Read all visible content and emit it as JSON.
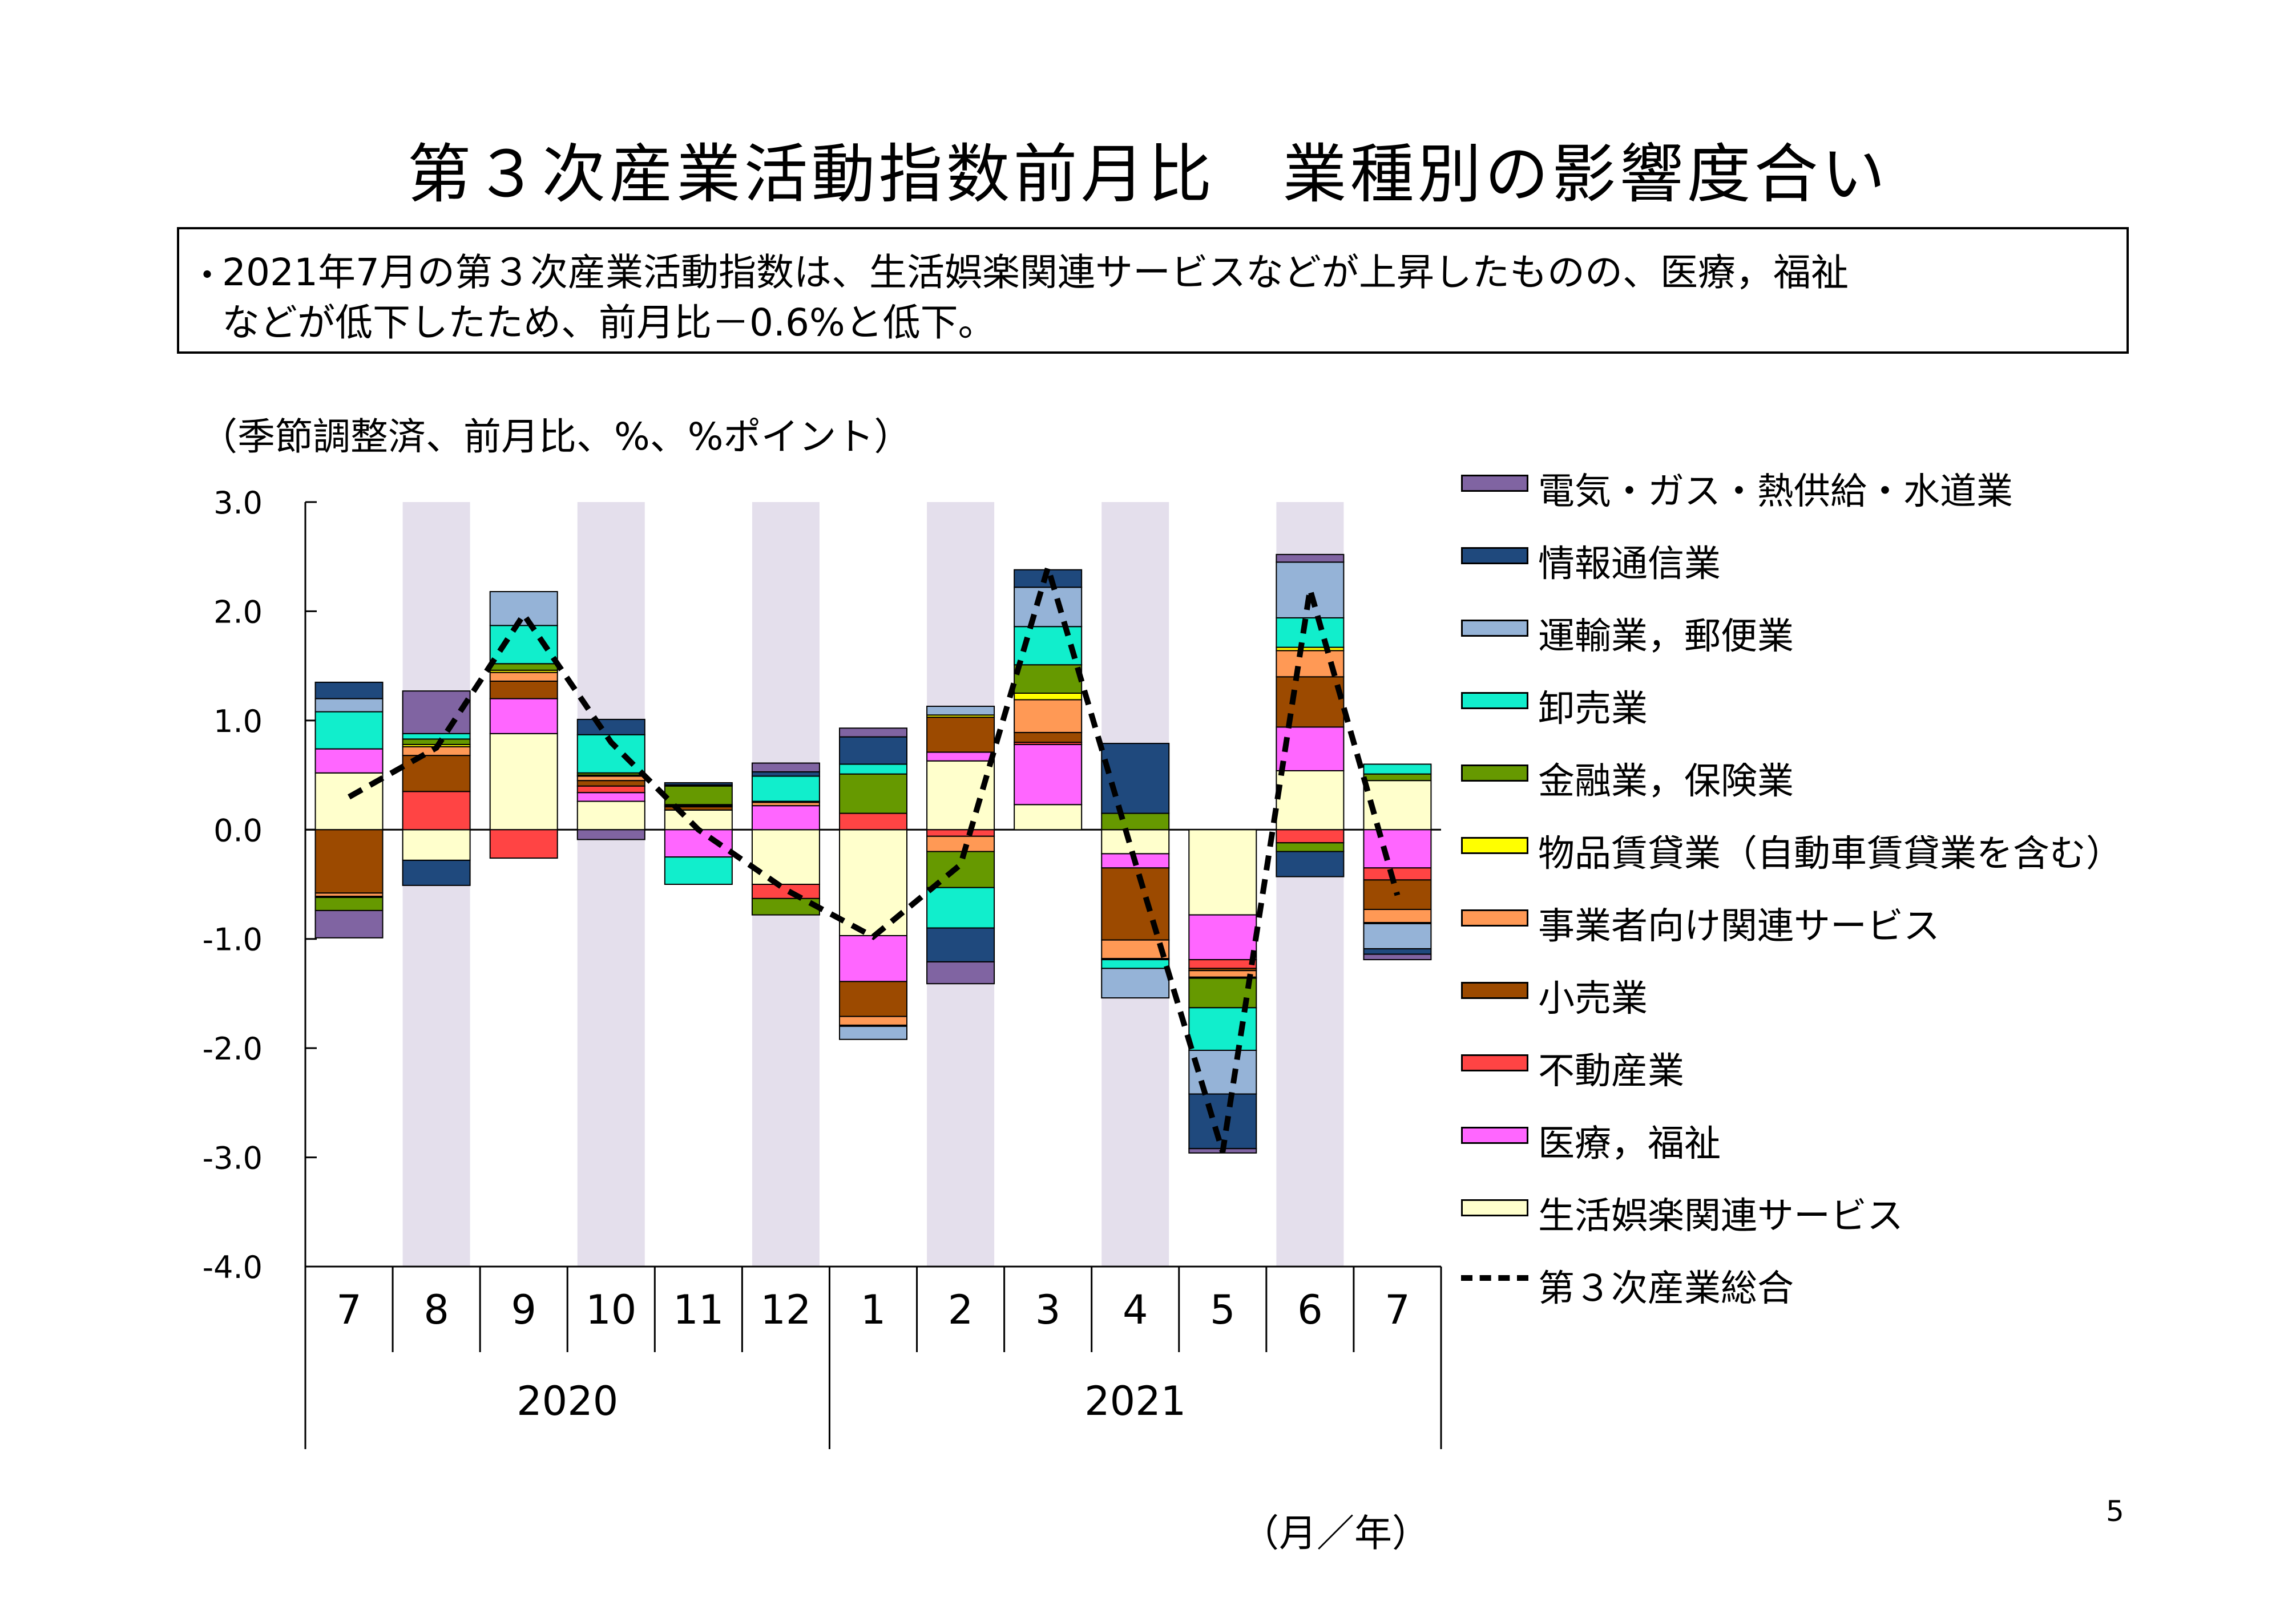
{
  "title": "第３次産業活動指数前月比　業種別の影響度合い",
  "summary": {
    "bullet": "・",
    "line1": "2021年7月の第３次産業活動指数は、生活娯楽関連サービスなどが上昇したものの、医療，福祉",
    "line2": "などが低下したため、前月比－0.6%と低下。"
  },
  "units_note": "（季節調整済、前月比、%、%ポイント）",
  "page_number": "5",
  "chart_data": {
    "type": "bar",
    "stacked": true,
    "categories": [
      "7",
      "8",
      "9",
      "10",
      "11",
      "12",
      "1",
      "2",
      "3",
      "4",
      "5",
      "6",
      "7"
    ],
    "year_groups": [
      {
        "label": "2020",
        "start": 0,
        "end": 5
      },
      {
        "label": "2021",
        "start": 6,
        "end": 12
      }
    ],
    "x_unit_label": "（月／年）",
    "ylim": [
      -4.0,
      3.0
    ],
    "yticks": [
      3.0,
      2.0,
      1.0,
      0.0,
      -1.0,
      -2.0,
      -3.0,
      -4.0
    ],
    "ytick_labels": [
      "3.0",
      "2.0",
      "1.0",
      "0.0",
      "-1.0",
      "-2.0",
      "-3.0",
      "-4.0"
    ],
    "shaded_columns": [
      1,
      3,
      5,
      7,
      9,
      11
    ],
    "shade_color": "#e4dfec",
    "series": [
      {
        "name": "生活娯楽関連サービス",
        "color": "#ffffcc",
        "values": [
          0.52,
          -0.28,
          0.88,
          0.26,
          0.18,
          -0.5,
          -0.97,
          0.63,
          0.23,
          -0.22,
          -0.78,
          0.54,
          0.45
        ]
      },
      {
        "name": "医療，福祉",
        "color": "#ff66ff",
        "values": [
          0.22,
          0.0,
          0.32,
          0.08,
          -0.25,
          0.22,
          -0.42,
          0.08,
          0.55,
          -0.13,
          -0.41,
          0.4,
          -0.35
        ]
      },
      {
        "name": "不動産業",
        "color": "#ff4444",
        "values": [
          0.0,
          0.35,
          -0.26,
          0.06,
          0.0,
          -0.13,
          0.15,
          -0.06,
          0.02,
          0.0,
          -0.08,
          -0.12,
          -0.11
        ]
      },
      {
        "name": "小売業",
        "color": "#9c4a00",
        "values": [
          -0.58,
          0.33,
          0.16,
          0.05,
          0.03,
          0.0,
          -0.32,
          0.32,
          0.09,
          -0.66,
          -0.02,
          0.46,
          -0.27
        ]
      },
      {
        "name": "事業者向け関連サービス",
        "color": "#ff9955",
        "values": [
          -0.03,
          0.08,
          0.08,
          0.04,
          0.01,
          0.03,
          -0.08,
          -0.14,
          0.3,
          -0.17,
          -0.06,
          0.24,
          -0.12
        ]
      },
      {
        "name": "物品賃貸業（自動車賃貸業を含む）",
        "color": "#ffff00",
        "values": [
          -0.01,
          0.02,
          0.02,
          0.01,
          0.01,
          0.01,
          -0.01,
          0.02,
          0.06,
          -0.01,
          -0.01,
          0.03,
          -0.01
        ]
      },
      {
        "name": "金融業，保険業",
        "color": "#669900",
        "values": [
          -0.12,
          0.05,
          0.06,
          0.02,
          0.17,
          -0.15,
          0.36,
          -0.33,
          0.26,
          0.15,
          -0.27,
          -0.08,
          0.06
        ]
      },
      {
        "name": "卸売業",
        "color": "#11eecc",
        "values": [
          0.34,
          0.05,
          0.35,
          0.35,
          -0.25,
          0.23,
          0.09,
          -0.37,
          0.35,
          -0.08,
          -0.39,
          0.27,
          0.09
        ]
      },
      {
        "name": "運輸業，郵便業",
        "color": "#95b3d7",
        "values": [
          0.12,
          0.0,
          0.31,
          0.0,
          0.01,
          0.0,
          -0.12,
          0.08,
          0.36,
          -0.27,
          -0.4,
          0.51,
          -0.23
        ]
      },
      {
        "name": "情報通信業",
        "color": "#1f497d",
        "values": [
          0.15,
          -0.23,
          0.0,
          0.14,
          0.02,
          0.04,
          0.25,
          -0.31,
          0.16,
          0.64,
          -0.5,
          -0.23,
          -0.05
        ]
      },
      {
        "name": "電気・ガス・熱供給・水道業",
        "color": "#8064a2",
        "values": [
          -0.25,
          0.39,
          0.0,
          -0.09,
          0.0,
          0.08,
          0.08,
          -0.2,
          0.0,
          0.0,
          -0.04,
          0.07,
          -0.05
        ]
      }
    ],
    "total_line": {
      "name": "第３次産業総合",
      "values": [
        0.3,
        0.75,
        1.97,
        0.8,
        0.0,
        -0.55,
        -0.98,
        -0.32,
        2.4,
        -0.3,
        -2.95,
        2.2,
        -0.6
      ]
    },
    "legend_order": [
      "電気・ガス・熱供給・水道業",
      "情報通信業",
      "運輸業，郵便業",
      "卸売業",
      "金融業，保険業",
      "物品賃貸業（自動車賃貸業を含む）",
      "事業者向け関連サービス",
      "小売業",
      "不動産業",
      "医療，福祉",
      "生活娯楽関連サービス",
      "第３次産業総合"
    ],
    "legend_placement": "right"
  }
}
